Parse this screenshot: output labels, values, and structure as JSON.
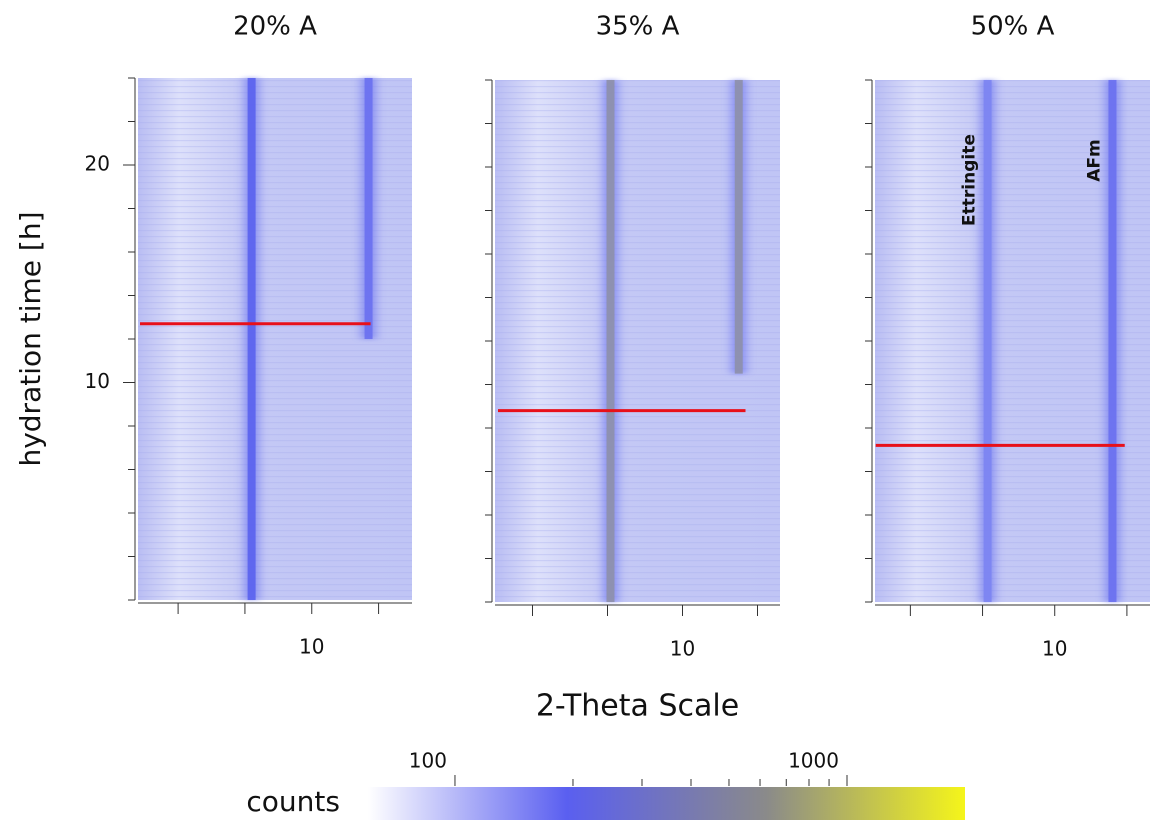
{
  "chart_data": [
    {
      "type": "heatmap",
      "title": "20% A",
      "ylabel": "hydration time [h]",
      "xlim": [
        7.4,
        11.5
      ],
      "xticks": [
        10
      ],
      "xminorticks": [
        8,
        9,
        11
      ],
      "ylim": [
        0,
        24
      ],
      "yticks": [
        10,
        20
      ],
      "yminorticks": [
        0,
        2,
        4,
        6,
        8,
        12,
        14,
        16,
        18,
        22,
        24
      ],
      "peaks": {
        "x": [
          9.1,
          10.85
        ],
        "from": [
          0,
          12
        ],
        "color": [
          "#5a62ee",
          "#6a70f0"
        ]
      },
      "marker": {
        "y": 12.7,
        "x": [
          7.43,
          10.88
        ],
        "color": "#e8101a"
      }
    },
    {
      "type": "heatmap",
      "title": "35% A",
      "xlabel": "2-Theta Scale",
      "xlim": [
        7.5,
        11.3
      ],
      "xticks": [
        10
      ],
      "xminorticks": [
        8,
        9,
        11
      ],
      "ylim": [
        0,
        24
      ],
      "yminorticks": [
        0,
        2,
        4,
        6,
        8,
        10,
        12,
        14,
        16,
        18,
        20,
        22,
        24
      ],
      "peaks": {
        "x": [
          9.04,
          10.75
        ],
        "from": [
          0,
          10.5
        ],
        "color": [
          "#8e90aa",
          "#8e90aa"
        ]
      },
      "marker": {
        "y": 8.8,
        "x": [
          7.54,
          10.84
        ],
        "color": "#e8101a"
      }
    },
    {
      "type": "heatmap",
      "title": "50% A",
      "xlim": [
        7.51,
        11.32
      ],
      "xticks": [
        10
      ],
      "xminorticks": [
        8,
        9,
        11
      ],
      "ylim": [
        0,
        24
      ],
      "yminorticks": [
        0,
        2,
        4,
        6,
        8,
        10,
        12,
        14,
        16,
        18,
        20,
        22,
        24
      ],
      "peaks": {
        "x": [
          9.07,
          10.8
        ],
        "from": [
          0,
          0
        ],
        "color": [
          "#7c84f2",
          "#6a70f0"
        ]
      },
      "annotations": [
        {
          "text": "Ettringite",
          "x": 9.07,
          "y": 19.4
        },
        {
          "text": "AFm",
          "x": 10.8,
          "y": 20.3
        }
      ],
      "marker": {
        "y": 7.2,
        "x": [
          7.52,
          10.97
        ],
        "color": "#e8101a"
      }
    },
    {
      "type": "colorbar",
      "label": "counts",
      "clim": [
        60,
        2000
      ],
      "log": true,
      "ticks": [
        100,
        1000
      ],
      "minorticks": [
        200,
        300,
        400,
        500,
        600,
        700,
        800,
        900
      ],
      "colors": [
        "#ffffff",
        "#5a5ff0",
        "#8a8a8a",
        "#f5f51a"
      ]
    }
  ]
}
